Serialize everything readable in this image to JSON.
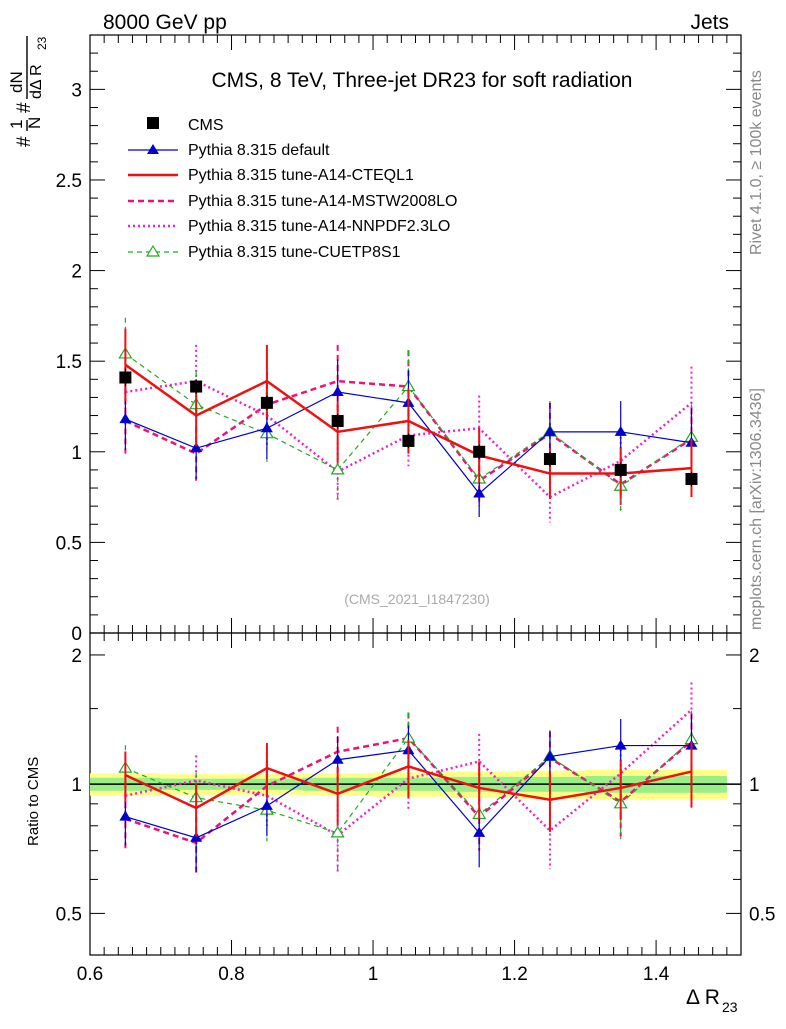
{
  "header": {
    "left": "8000 GeV pp",
    "right": "Jets"
  },
  "side_text": {
    "rivet": "Rivet 4.1.0, ≥ 100k events",
    "mcplots": "mcplots.cern.ch [arXiv:1306.3436]"
  },
  "watermark": "(CMS_2021_I1847230)",
  "colors": {
    "cms": "#000000",
    "default": "#0000cc",
    "cteql1": "#ee1111",
    "mstw": "#ee1177",
    "nnpdf": "#ee22cc",
    "cuetp8s1": "#22aa22",
    "band_outer": "#ffff88",
    "band_inner": "#99ee88"
  },
  "chart_data": [
    {
      "type": "line",
      "title": "CMS, 8 TeV, Three-jet DR23 for soft radiation",
      "xlabel": "Δ R₂₃",
      "ylabel": "#1/N #dN/dΔ R₂₃",
      "xlim": [
        0.6,
        1.52
      ],
      "ylim": [
        0,
        3.3
      ],
      "x": [
        0.65,
        0.75,
        0.85,
        0.95,
        1.05,
        1.15,
        1.25,
        1.35,
        1.45
      ],
      "yticks": [
        "0",
        "0.5",
        "1",
        "1.5",
        "2",
        "2.5",
        "3"
      ],
      "xticks": [
        "0.6",
        "0.8",
        "1",
        "1.2",
        "1.4"
      ],
      "series": [
        {
          "key": "cms",
          "name": "CMS",
          "values": [
            1.41,
            1.36,
            1.27,
            1.17,
            1.06,
            1.0,
            0.96,
            0.9,
            0.85
          ],
          "err": [
            0.05,
            0.04,
            0.04,
            0.04,
            0.04,
            0.04,
            0.04,
            0.04,
            0.04
          ]
        },
        {
          "key": "default",
          "name": "Pythia 8.315 default",
          "values": [
            1.18,
            1.02,
            1.13,
            1.33,
            1.27,
            0.77,
            1.11,
            1.11,
            1.05
          ],
          "err": [
            0.17,
            0.17,
            0.17,
            0.18,
            0.18,
            0.13,
            0.16,
            0.17,
            0.19
          ]
        },
        {
          "key": "cteql1",
          "name": "Pythia 8.315 tune-A14-CTEQL1",
          "values": [
            1.48,
            1.2,
            1.39,
            1.11,
            1.17,
            0.98,
            0.88,
            0.88,
            0.91
          ],
          "err": [
            0.2,
            0.17,
            0.2,
            0.17,
            0.18,
            0.15,
            0.14,
            0.14,
            0.16
          ]
        },
        {
          "key": "mstw",
          "name": "Pythia 8.315 tune-A14-MSTW2008LO",
          "values": [
            1.17,
            0.99,
            1.26,
            1.39,
            1.36,
            0.84,
            1.1,
            0.82,
            1.07
          ],
          "err": [
            0.18,
            0.15,
            0.18,
            0.2,
            0.2,
            0.14,
            0.17,
            0.14,
            0.17
          ]
        },
        {
          "key": "nnpdf",
          "name": "Pythia 8.315 tune-A14-NNPDF2.3LO",
          "values": [
            1.33,
            1.39,
            1.2,
            0.89,
            1.09,
            1.13,
            0.75,
            0.95,
            1.27
          ],
          "err": [
            0.19,
            0.2,
            0.18,
            0.16,
            0.17,
            0.18,
            0.14,
            0.16,
            0.2
          ]
        },
        {
          "key": "cuetp8s1",
          "name": "Pythia 8.315 tune-CUETP8S1",
          "values": [
            1.54,
            1.26,
            1.1,
            0.9,
            1.36,
            0.85,
            1.11,
            0.81,
            1.08
          ],
          "err": [
            0.2,
            0.18,
            0.17,
            0.16,
            0.2,
            0.14,
            0.17,
            0.14,
            0.18
          ]
        }
      ]
    },
    {
      "type": "line",
      "title": "",
      "xlabel": "Δ R₂₃",
      "ylabel": "Ratio to CMS",
      "xlim": [
        0.6,
        1.52
      ],
      "ylim": [
        0.4,
        2.25
      ],
      "yticks": [
        "0.5",
        "1",
        "2"
      ],
      "xticks": [
        "0.6",
        "0.8",
        "1",
        "1.2",
        "1.4"
      ],
      "band_inner": [
        0.035,
        0.03,
        0.03,
        0.035,
        0.035,
        0.04,
        0.04,
        0.045,
        0.045
      ],
      "band_outer": [
        0.06,
        0.055,
        0.055,
        0.06,
        0.065,
        0.07,
        0.075,
        0.08,
        0.08
      ],
      "series": [
        {
          "key": "default",
          "values": [
            0.84,
            0.75,
            0.89,
            1.14,
            1.2,
            0.77,
            1.16,
            1.23,
            1.23
          ]
        },
        {
          "key": "cteql1",
          "values": [
            1.05,
            0.88,
            1.09,
            0.95,
            1.1,
            0.98,
            0.92,
            0.98,
            1.07
          ]
        },
        {
          "key": "mstw",
          "values": [
            0.83,
            0.73,
            0.99,
            1.19,
            1.28,
            0.84,
            1.15,
            0.91,
            1.26
          ]
        },
        {
          "key": "nnpdf",
          "values": [
            0.94,
            1.02,
            0.94,
            0.76,
            1.03,
            1.13,
            0.78,
            1.06,
            1.49
          ]
        },
        {
          "key": "cuetp8s1",
          "values": [
            1.09,
            0.93,
            0.87,
            0.77,
            1.28,
            0.85,
            1.16,
            0.9,
            1.27
          ]
        }
      ]
    }
  ]
}
